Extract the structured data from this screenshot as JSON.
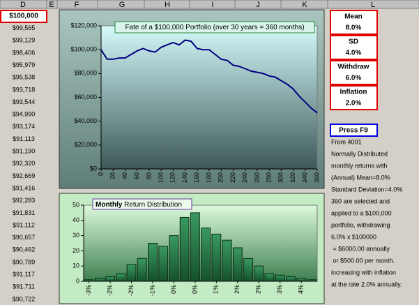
{
  "sheet": {
    "columns": [
      "D",
      "E",
      "F",
      "G",
      "H",
      "I",
      "J",
      "K",
      "L"
    ],
    "column_d": [
      "$100,000",
      "$99,565",
      "$99,129",
      "$98,406",
      "$95,979",
      "$95,538",
      "$93,718",
      "$93,544",
      "$94,990",
      "$93,174",
      "$91,113",
      "$91,190",
      "$92,320",
      "$92,669",
      "$91,416",
      "$92,283",
      "$91,831",
      "$91,112",
      "$90,657",
      "$90,462",
      "$90,789",
      "$91,117",
      "$91,711",
      "$90,722"
    ],
    "params": [
      {
        "name": "Mean",
        "value": "8.0%"
      },
      {
        "name": "SD",
        "value": "4.0%"
      },
      {
        "name": "Withdraw",
        "value": "6.0%"
      },
      {
        "name": "Inflation",
        "value": "2.0%"
      }
    ],
    "button": "Press F9",
    "notes": [
      "From 4001",
      "Normally Distributed",
      "monthly returns with",
      "(Annual) Mean=8.0%",
      "Standard Deviation=4.0%",
      "360 are selected and",
      "applied to a $100,000",
      "portfolio, withdrawing",
      "6.0% x $100000",
      " = $6000.00 annually",
      " or $500.00 per month.",
      "increasing with inflation",
      "at the rate 2.0% annually."
    ]
  },
  "chart_data": [
    {
      "type": "line",
      "title": "Fate of a $100,000 Portfolio (over 30 years = 360 months)",
      "x": [
        0,
        10,
        20,
        30,
        40,
        50,
        60,
        70,
        80,
        90,
        100,
        110,
        120,
        130,
        140,
        150,
        160,
        170,
        180,
        190,
        200,
        210,
        220,
        230,
        240,
        250,
        260,
        270,
        280,
        290,
        300,
        310,
        320,
        330,
        340,
        350,
        360
      ],
      "values": [
        100000,
        92000,
        92000,
        93000,
        93000,
        96000,
        99000,
        101000,
        99000,
        98000,
        102000,
        104000,
        106000,
        104000,
        108000,
        107000,
        101000,
        100000,
        100000,
        96000,
        92000,
        91000,
        87000,
        86000,
        84000,
        82000,
        81000,
        80000,
        78000,
        77000,
        74000,
        71000,
        67000,
        61000,
        56000,
        51000,
        47000
      ],
      "color": "#000080",
      "xlim": [
        0,
        360
      ],
      "xticks": [
        0,
        20,
        40,
        60,
        80,
        100,
        120,
        140,
        160,
        180,
        200,
        220,
        240,
        260,
        280,
        300,
        320,
        340,
        360
      ],
      "ylim": [
        0,
        120000
      ],
      "yticks": [
        {
          "value": 0,
          "label": "$0"
        },
        {
          "value": 20000,
          "label": "$20,000"
        },
        {
          "value": 40000,
          "label": "$40,000"
        },
        {
          "value": 60000,
          "label": "$60,000"
        },
        {
          "value": 80000,
          "label": "$80,000"
        },
        {
          "value": 100000,
          "label": "$100,000"
        },
        {
          "value": 120000,
          "label": "$120,000"
        }
      ]
    },
    {
      "type": "bar",
      "title_emphasis": "Monthly",
      "title": "Return Distribution",
      "categories": [
        "-3%",
        null,
        "-2%",
        null,
        "-2%",
        null,
        "-1%",
        null,
        "0%",
        null,
        "0%",
        null,
        "1%",
        null,
        "2%",
        null,
        "2%",
        null,
        "3%",
        null,
        "4%",
        null
      ],
      "values": [
        1,
        2,
        3,
        5,
        11,
        15,
        25,
        23,
        30,
        42,
        45,
        35,
        31,
        27,
        22,
        15,
        10,
        5,
        4,
        3,
        2,
        1
      ],
      "color": "#2e7d4f",
      "ylim": [
        0,
        50
      ],
      "yticks": [
        0,
        10,
        20,
        30,
        40,
        50
      ]
    }
  ]
}
